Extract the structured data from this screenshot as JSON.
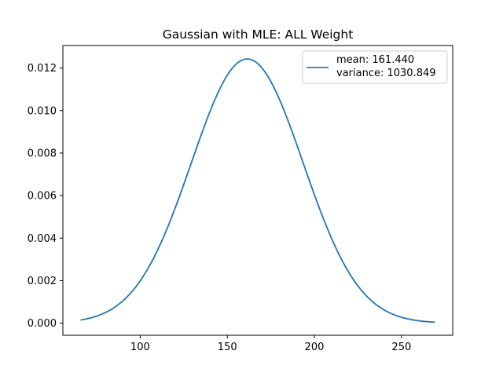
{
  "chart_data": {
    "type": "line",
    "title": "Gaussian with MLE: ALL Weight",
    "xlabel": "",
    "ylabel": "",
    "xlim": [
      55.6,
      279.4
    ],
    "ylim": [
      -0.000569,
      0.013057
    ],
    "x_ticks": [
      100,
      150,
      200,
      250
    ],
    "x_tick_labels": [
      "100",
      "150",
      "200",
      "250"
    ],
    "y_ticks": [
      0.0,
      0.002,
      0.004,
      0.006,
      0.008,
      0.01,
      0.012
    ],
    "y_tick_labels": [
      "0.000",
      "0.002",
      "0.004",
      "0.006",
      "0.008",
      "0.010",
      "0.012"
    ],
    "grid": false,
    "legend_placement": "upper right",
    "legend": [
      "mean: 161.440",
      "variance: 1030.849"
    ],
    "series": [
      {
        "color": "#1f77b4",
        "distribution": "gaussian",
        "mean": 161.44,
        "variance": 1030.849,
        "x_range": [
          65.8,
          269.2
        ]
      }
    ]
  }
}
